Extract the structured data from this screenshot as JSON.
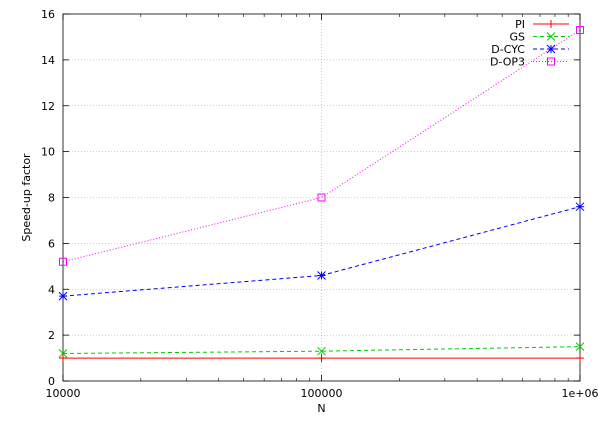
{
  "chart_data": {
    "type": "line",
    "title": "",
    "xlabel": "N",
    "ylabel": "Speed-up factor",
    "xscale": "log",
    "xlim": [
      10000,
      1000000
    ],
    "ylim": [
      0,
      16
    ],
    "x_ticks": [
      10000,
      100000,
      1000000
    ],
    "x_tick_labels": [
      "10000",
      "100000",
      "1e+06"
    ],
    "y_ticks": [
      0,
      2,
      4,
      6,
      8,
      10,
      12,
      14,
      16
    ],
    "y_tick_labels": [
      "0",
      "2",
      "4",
      "6",
      "8",
      "10",
      "12",
      "14",
      "16"
    ],
    "grid": true,
    "legend_position": "top-right",
    "series": [
      {
        "name": "PI",
        "color": "#ff0000",
        "marker": "plus",
        "dash": "none",
        "x": [
          10000,
          100000,
          1000000
        ],
        "y": [
          1.0,
          1.0,
          1.0
        ]
      },
      {
        "name": "GS",
        "color": "#00cc00",
        "marker": "cross",
        "dash": "dashed",
        "x": [
          10000,
          100000,
          1000000
        ],
        "y": [
          1.2,
          1.3,
          1.5
        ]
      },
      {
        "name": "D-CYC",
        "color": "#0000ff",
        "marker": "star",
        "dash": "dashed",
        "x": [
          10000,
          100000,
          1000000
        ],
        "y": [
          3.7,
          4.6,
          7.6
        ]
      },
      {
        "name": "D-OP3",
        "color": "#ff00ff",
        "marker": "square",
        "dash": "dotted",
        "x": [
          10000,
          100000,
          1000000
        ],
        "y": [
          5.2,
          8.0,
          15.3
        ]
      }
    ]
  }
}
